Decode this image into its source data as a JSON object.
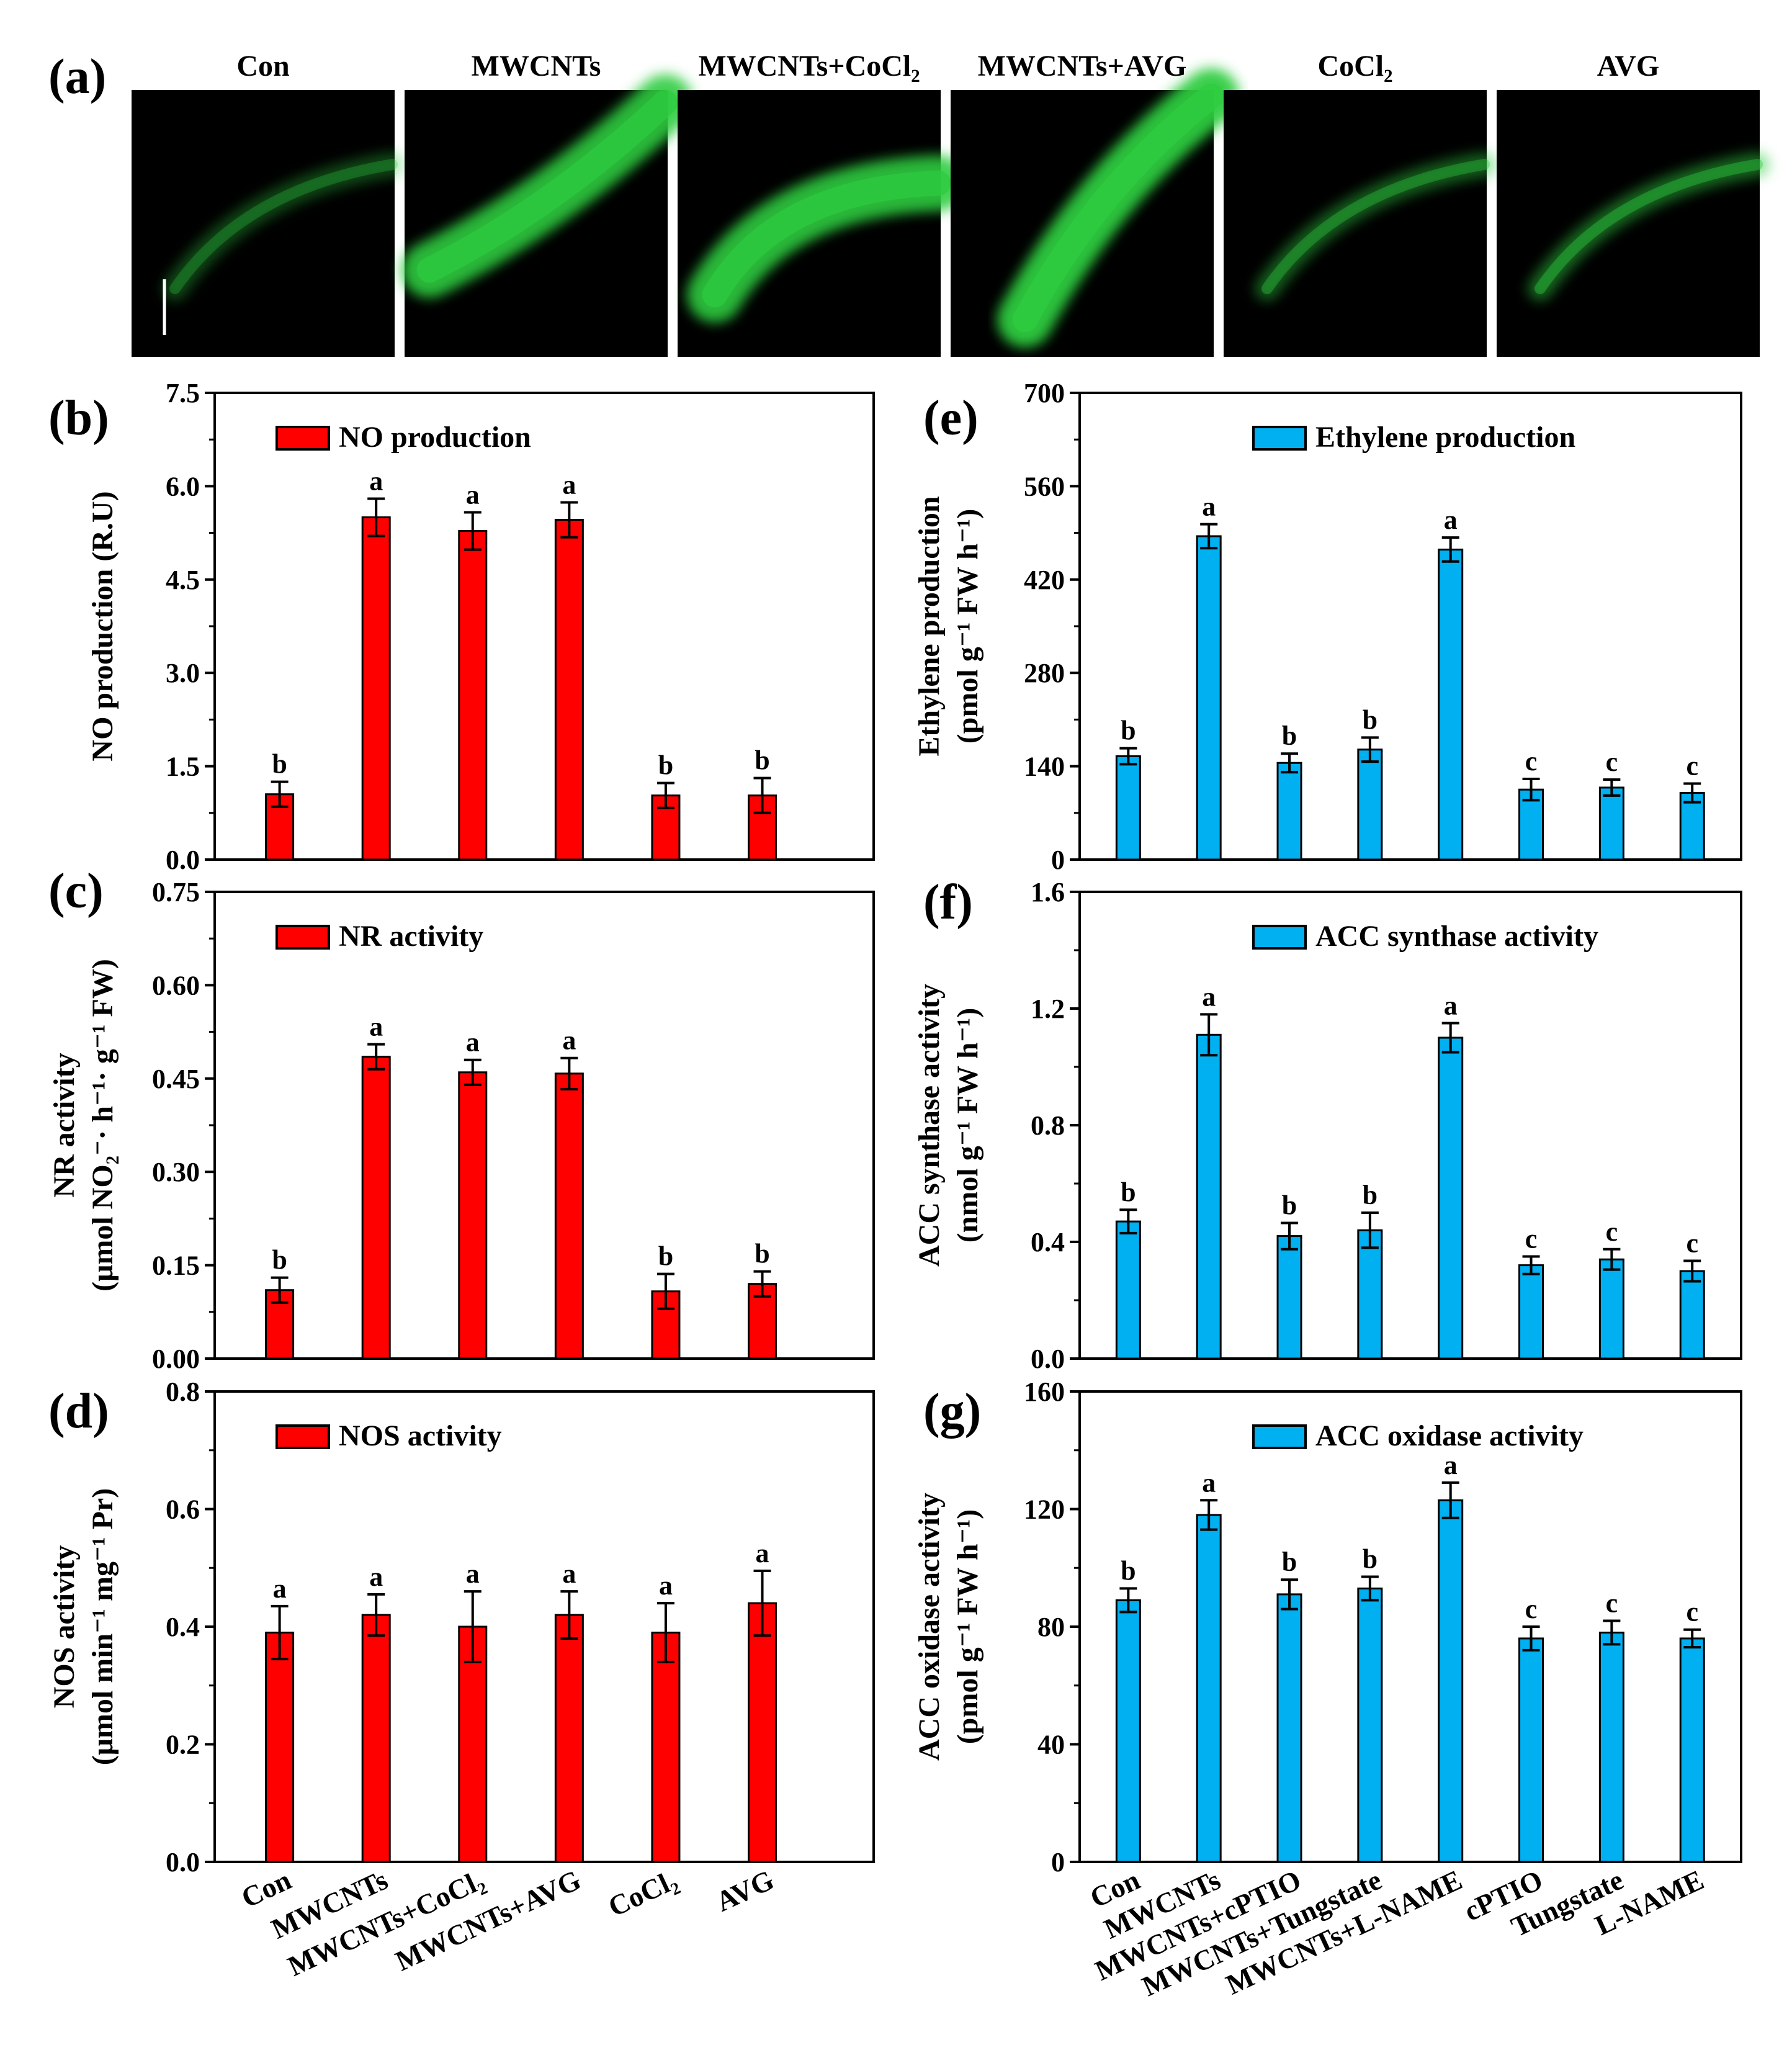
{
  "colors": {
    "red_bar": "#ff0000",
    "blue_bar": "#00b0f0",
    "micrograph_bg": "#000000",
    "fluorescence": "#2ecc40"
  },
  "panel_a": {
    "letter": "(a)",
    "images": [
      {
        "label": "Con",
        "intensity": 0.35,
        "shape": "thin"
      },
      {
        "label": "MWCNTs",
        "intensity": 0.9,
        "shape": "wide"
      },
      {
        "label": "MWCNTs+CoCl₂",
        "intensity": 0.9,
        "shape": "arc"
      },
      {
        "label": "MWCNTs+AVG",
        "intensity": 0.95,
        "shape": "diag"
      },
      {
        "label": "CoCl₂",
        "intensity": 0.45,
        "shape": "thin"
      },
      {
        "label": "AVG",
        "intensity": 0.5,
        "shape": "thin"
      }
    ]
  },
  "chart_data": [
    {
      "id": "b",
      "letter": "(b)",
      "type": "bar",
      "color": "#ff0000",
      "legend": "NO production",
      "ylabel_lines": [
        "NO production (R.U)"
      ],
      "ylim": [
        0,
        7.5
      ],
      "yticks": [
        "0.0",
        "1.5",
        "3.0",
        "4.5",
        "6.0",
        "7.5"
      ],
      "categories": [
        "Con",
        "MWCNTs",
        "MWCNTs+CoCl₂",
        "MWCNTs+AVG",
        "CoCl₂",
        "AVG"
      ],
      "show_categories": false,
      "values": [
        1.05,
        5.5,
        5.28,
        5.46,
        1.03,
        1.03
      ],
      "errors": [
        0.2,
        0.3,
        0.3,
        0.28,
        0.2,
        0.28
      ],
      "letters": [
        "b",
        "a",
        "a",
        "a",
        "b",
        "b"
      ]
    },
    {
      "id": "c",
      "letter": "(c)",
      "type": "bar",
      "color": "#ff0000",
      "legend": "NR activity",
      "ylabel_lines": [
        "NR activity",
        "(μmol NO₂⁻· h⁻¹· g⁻¹ FW)"
      ],
      "ylim": [
        0,
        0.75
      ],
      "yticks": [
        "0.00",
        "0.15",
        "0.30",
        "0.45",
        "0.60",
        "0.75"
      ],
      "categories": [
        "Con",
        "MWCNTs",
        "MWCNTs+CoCl₂",
        "MWCNTs+AVG",
        "CoCl₂",
        "AVG"
      ],
      "show_categories": false,
      "values": [
        0.11,
        0.485,
        0.46,
        0.458,
        0.108,
        0.12
      ],
      "errors": [
        0.02,
        0.02,
        0.02,
        0.025,
        0.028,
        0.02
      ],
      "letters": [
        "b",
        "a",
        "a",
        "a",
        "b",
        "b"
      ]
    },
    {
      "id": "d",
      "letter": "(d)",
      "type": "bar",
      "color": "#ff0000",
      "legend": "NOS activity",
      "ylabel_lines": [
        "NOS activity",
        "(μmol min⁻¹ mg⁻¹ Pr)"
      ],
      "ylim": [
        0,
        0.8
      ],
      "yticks": [
        "0.0",
        "0.2",
        "0.4",
        "0.6",
        "0.8"
      ],
      "categories": [
        "Con",
        "MWCNTs",
        "MWCNTs+CoCl₂",
        "MWCNTs+AVG",
        "CoCl₂",
        "AVG"
      ],
      "show_categories": true,
      "values": [
        0.39,
        0.42,
        0.4,
        0.42,
        0.39,
        0.44
      ],
      "errors": [
        0.045,
        0.035,
        0.06,
        0.04,
        0.05,
        0.055
      ],
      "letters": [
        "a",
        "a",
        "a",
        "a",
        "a",
        "a"
      ]
    },
    {
      "id": "e",
      "letter": "(e)",
      "type": "bar",
      "color": "#00b0f0",
      "legend": "Ethylene production",
      "ylabel_lines": [
        "Ethylene production",
        "(pmol g⁻¹ FW h⁻¹)"
      ],
      "ylim": [
        0,
        700
      ],
      "yticks": [
        "0",
        "140",
        "280",
        "420",
        "560",
        "700"
      ],
      "categories": [
        "Con",
        "MWCNTs",
        "MWCNTs+cPTIO",
        "MWCNTs+Tungstate",
        "MWCNTs+L-NAME",
        "cPTIO",
        "Tungstate",
        "L-NAME"
      ],
      "show_categories": false,
      "values": [
        155,
        485,
        145,
        165,
        465,
        105,
        108,
        100
      ],
      "errors": [
        12,
        18,
        14,
        18,
        18,
        16,
        12,
        14
      ],
      "letters": [
        "b",
        "a",
        "b",
        "b",
        "a",
        "c",
        "c",
        "c"
      ]
    },
    {
      "id": "f",
      "letter": "(f)",
      "type": "bar",
      "color": "#00b0f0",
      "legend": "ACC synthase activity",
      "ylabel_lines": [
        "ACC synthase activity",
        "(nmol g⁻¹ FW h⁻¹)"
      ],
      "ylim": [
        0,
        1.6
      ],
      "yticks": [
        "0.0",
        "0.4",
        "0.8",
        "1.2",
        "1.6"
      ],
      "categories": [
        "Con",
        "MWCNTs",
        "MWCNTs+cPTIO",
        "MWCNTs+Tungstate",
        "MWCNTs+L-NAME",
        "cPTIO",
        "Tungstate",
        "L-NAME"
      ],
      "show_categories": false,
      "values": [
        0.47,
        1.11,
        0.42,
        0.44,
        1.1,
        0.32,
        0.34,
        0.3
      ],
      "errors": [
        0.04,
        0.07,
        0.045,
        0.06,
        0.05,
        0.03,
        0.035,
        0.035
      ],
      "letters": [
        "b",
        "a",
        "b",
        "b",
        "a",
        "c",
        "c",
        "c"
      ]
    },
    {
      "id": "g",
      "letter": "(g)",
      "type": "bar",
      "color": "#00b0f0",
      "legend": "ACC oxidase activity",
      "ylabel_lines": [
        "ACC oxidase activity",
        "(pmol g⁻¹ FW h⁻¹)"
      ],
      "ylim": [
        0,
        160
      ],
      "yticks": [
        "0",
        "40",
        "80",
        "120",
        "160"
      ],
      "categories": [
        "Con",
        "MWCNTs",
        "MWCNTs+cPTIO",
        "MWCNTs+Tungstate",
        "MWCNTs+L-NAME",
        "cPTIO",
        "Tungstate",
        "L-NAME"
      ],
      "show_categories": true,
      "values": [
        89,
        118,
        91,
        93,
        123,
        76,
        78,
        76
      ],
      "errors": [
        4,
        5,
        5,
        4,
        6,
        4,
        4,
        3
      ],
      "letters": [
        "b",
        "a",
        "b",
        "b",
        "a",
        "c",
        "c",
        "c"
      ]
    }
  ]
}
